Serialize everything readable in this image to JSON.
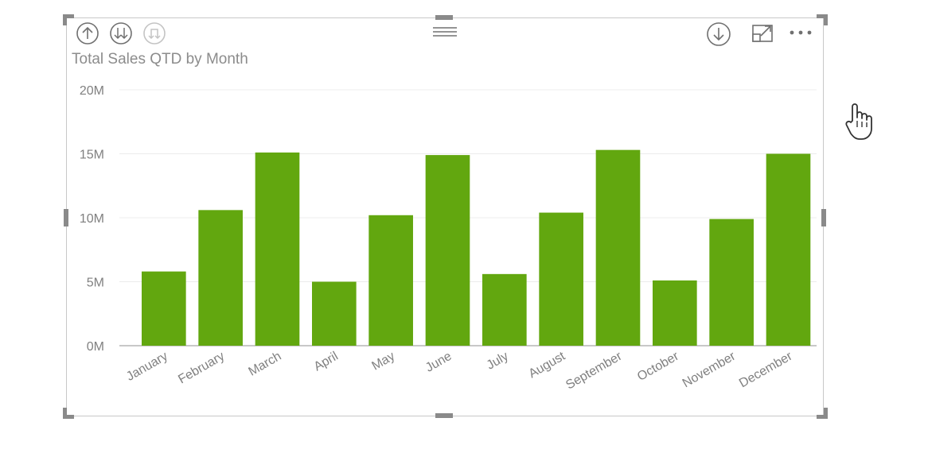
{
  "visual": {
    "title": "Total Sales QTD by Month",
    "icons": {
      "drill_up": "arrow-up-icon",
      "drill_down_all": "double-arrow-down-icon",
      "expand_hierarchy": "fork-down-icon",
      "drag": "drag-handle-icon",
      "drill_mode": "arrow-down-circle-icon",
      "focus_mode": "focus-mode-icon",
      "more_options": "more-options-icon"
    },
    "accent_color": "#62a70f"
  },
  "chart_data": {
    "type": "bar",
    "title": "Total Sales QTD by Month",
    "categories": [
      "January",
      "February",
      "March",
      "April",
      "May",
      "June",
      "July",
      "August",
      "September",
      "October",
      "November",
      "December"
    ],
    "values": [
      5.8,
      10.6,
      15.1,
      5.0,
      10.2,
      14.9,
      5.6,
      10.4,
      15.3,
      5.1,
      9.9,
      15.0
    ],
    "value_unit": "M",
    "y_ticks": [
      "0M",
      "5M",
      "10M",
      "15M",
      "20M"
    ],
    "ylim": [
      0,
      20
    ],
    "grid": true,
    "xlabel": "",
    "ylabel": ""
  },
  "cursor": "hand-pointer-icon"
}
